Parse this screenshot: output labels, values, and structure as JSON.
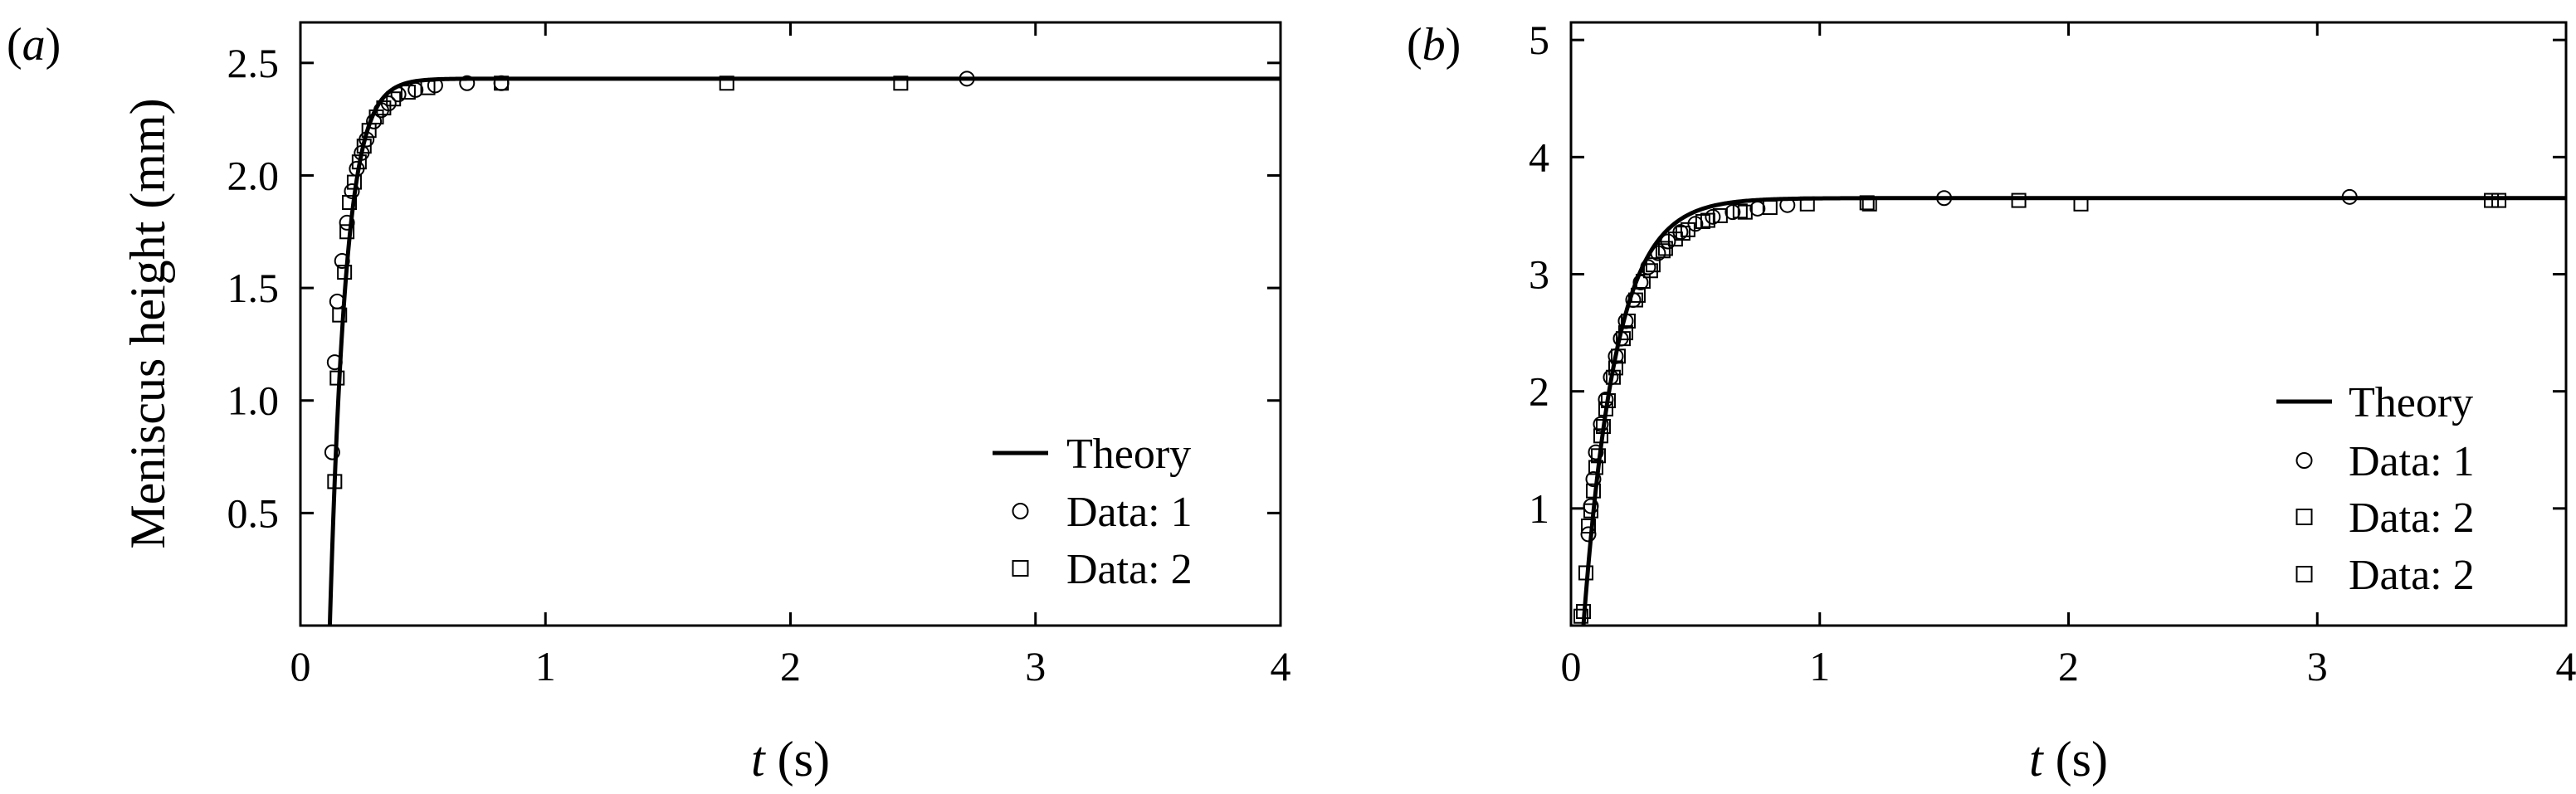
{
  "chart_data": [
    {
      "panel_label_open": "(",
      "panel_letter": "a",
      "panel_label_close": ")",
      "type": "line",
      "xlabel_var": "t",
      "xlabel_unit": "(s)",
      "ylabel": "Meniscus height (mm)",
      "xlim": [
        0,
        4
      ],
      "ylim": [
        0,
        2.68
      ],
      "xticks": [
        0,
        1,
        2,
        3,
        4
      ],
      "xtick_labels": [
        "0",
        "1",
        "2",
        "3",
        "4"
      ],
      "yticks": [
        0.5,
        1.0,
        1.5,
        2.0,
        2.5
      ],
      "ytick_labels": [
        "0.5",
        "1.0",
        "1.5",
        "2.0",
        "2.5"
      ],
      "legend_position": "lower right",
      "theory": {
        "name": "Theory",
        "h_max": 2.43,
        "tau": 0.065,
        "t0": 0.12
      },
      "series": [
        {
          "name": "Data: 1",
          "marker": "circle",
          "x": [
            0.13,
            0.14,
            0.15,
            0.17,
            0.19,
            0.21,
            0.23,
            0.25,
            0.27,
            0.3,
            0.33,
            0.36,
            0.4,
            0.47,
            0.55,
            0.68,
            0.82,
            2.72
          ],
          "y": [
            0.77,
            1.17,
            1.44,
            1.62,
            1.79,
            1.93,
            2.03,
            2.1,
            2.16,
            2.24,
            2.29,
            2.32,
            2.36,
            2.38,
            2.4,
            2.41,
            2.41,
            2.43
          ]
        },
        {
          "name": "Data: 2",
          "marker": "square",
          "x": [
            0.14,
            0.15,
            0.16,
            0.18,
            0.19,
            0.2,
            0.22,
            0.24,
            0.26,
            0.28,
            0.31,
            0.34,
            0.38,
            0.44,
            0.52,
            0.82,
            1.74,
            2.45
          ],
          "y": [
            0.64,
            1.1,
            1.38,
            1.57,
            1.75,
            1.88,
            1.97,
            2.06,
            2.13,
            2.2,
            2.26,
            2.3,
            2.34,
            2.37,
            2.39,
            2.41,
            2.41,
            2.41
          ]
        }
      ]
    },
    {
      "panel_label_open": "(",
      "panel_letter": "b",
      "panel_label_close": ")",
      "type": "line",
      "xlabel_var": "t",
      "xlabel_unit": "(s)",
      "ylabel": "",
      "xlim": [
        0,
        4
      ],
      "ylim": [
        0,
        5.15
      ],
      "xticks": [
        0,
        1,
        2,
        3,
        4
      ],
      "xtick_labels": [
        "0",
        "1",
        "2",
        "3",
        "4"
      ],
      "yticks": [
        1,
        2,
        3,
        4,
        5
      ],
      "ytick_labels": [
        "1",
        "2",
        "3",
        "4",
        "5"
      ],
      "legend_position": "lower right",
      "theory": {
        "name": "Theory",
        "h_max": 3.65,
        "tau": 0.13,
        "t0": 0.05
      },
      "series": [
        {
          "name": "Data: 1",
          "marker": "circle",
          "x": [
            0.07,
            0.08,
            0.09,
            0.1,
            0.12,
            0.14,
            0.16,
            0.18,
            0.2,
            0.22,
            0.25,
            0.28,
            0.31,
            0.35,
            0.39,
            0.44,
            0.5,
            0.57,
            0.65,
            0.75,
            0.87,
            1.5,
            3.13
          ],
          "y": [
            0.78,
            1.02,
            1.25,
            1.48,
            1.72,
            1.93,
            2.12,
            2.3,
            2.45,
            2.6,
            2.78,
            2.93,
            3.06,
            3.18,
            3.28,
            3.36,
            3.43,
            3.49,
            3.53,
            3.56,
            3.59,
            3.65,
            3.66
          ]
        },
        {
          "name": "Data: 2",
          "marker": "square",
          "x": [
            0.04,
            0.06,
            0.07,
            0.09,
            0.11,
            0.13,
            0.15,
            0.17,
            0.19,
            0.21,
            0.23,
            0.26,
            0.29,
            0.33,
            0.37,
            0.42,
            0.47,
            0.53,
            0.6,
            0.68,
            0.8,
            0.95,
            1.19,
            1.8,
            3.7
          ],
          "y": [
            0.08,
            0.45,
            0.85,
            1.15,
            1.45,
            1.7,
            1.92,
            2.12,
            2.3,
            2.45,
            2.6,
            2.78,
            2.94,
            3.08,
            3.2,
            3.3,
            3.38,
            3.45,
            3.5,
            3.54,
            3.57,
            3.6,
            3.61,
            3.63,
            3.63
          ]
        },
        {
          "name": "Data: 2",
          "marker": "square",
          "x": [
            0.05,
            0.08,
            0.1,
            0.12,
            0.14,
            0.18,
            0.22,
            0.27,
            0.32,
            0.38,
            0.45,
            0.55,
            0.7,
            1.2,
            2.05,
            3.73
          ],
          "y": [
            0.12,
            0.98,
            1.35,
            1.62,
            1.85,
            2.2,
            2.5,
            2.82,
            3.03,
            3.22,
            3.35,
            3.46,
            3.53,
            3.6,
            3.6,
            3.63
          ]
        }
      ]
    }
  ]
}
